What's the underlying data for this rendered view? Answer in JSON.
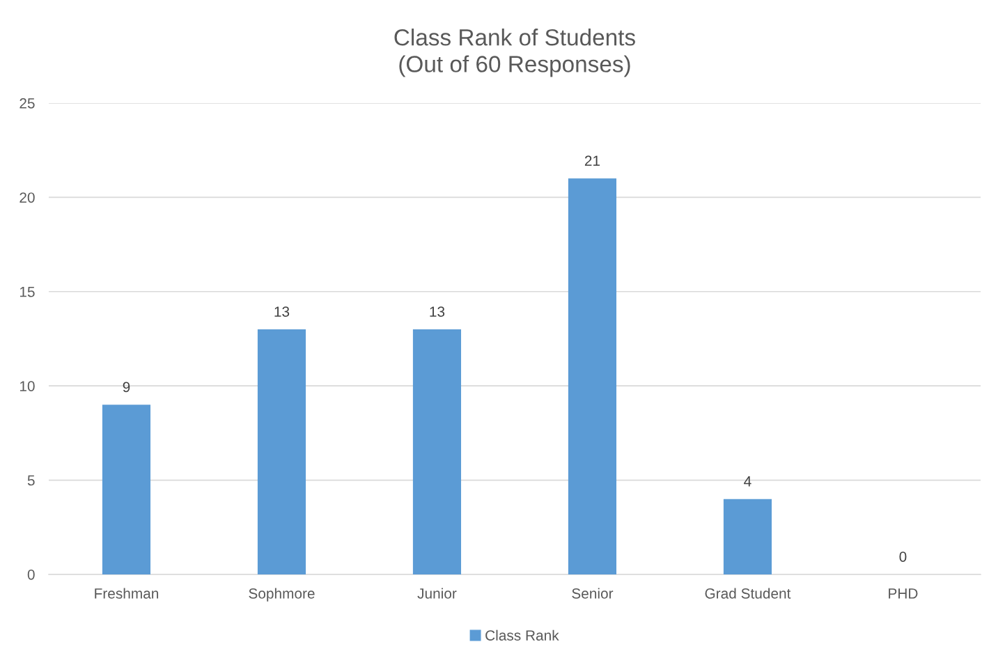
{
  "chart_data": {
    "type": "bar",
    "title": "Class Rank of Students\n(Out of 60 Responses)",
    "categories": [
      "Freshman",
      "Sophmore",
      "Junior",
      "Senior",
      "Grad Student",
      "PHD"
    ],
    "series": [
      {
        "name": "Class Rank",
        "color": "#5b9bd5",
        "values": [
          9,
          13,
          13,
          21,
          4,
          0
        ]
      }
    ],
    "ylim": [
      0,
      25
    ],
    "yticks": [
      0,
      5,
      10,
      15,
      20,
      25
    ],
    "grid": "y",
    "legend": "bottom",
    "data_labels": true
  }
}
